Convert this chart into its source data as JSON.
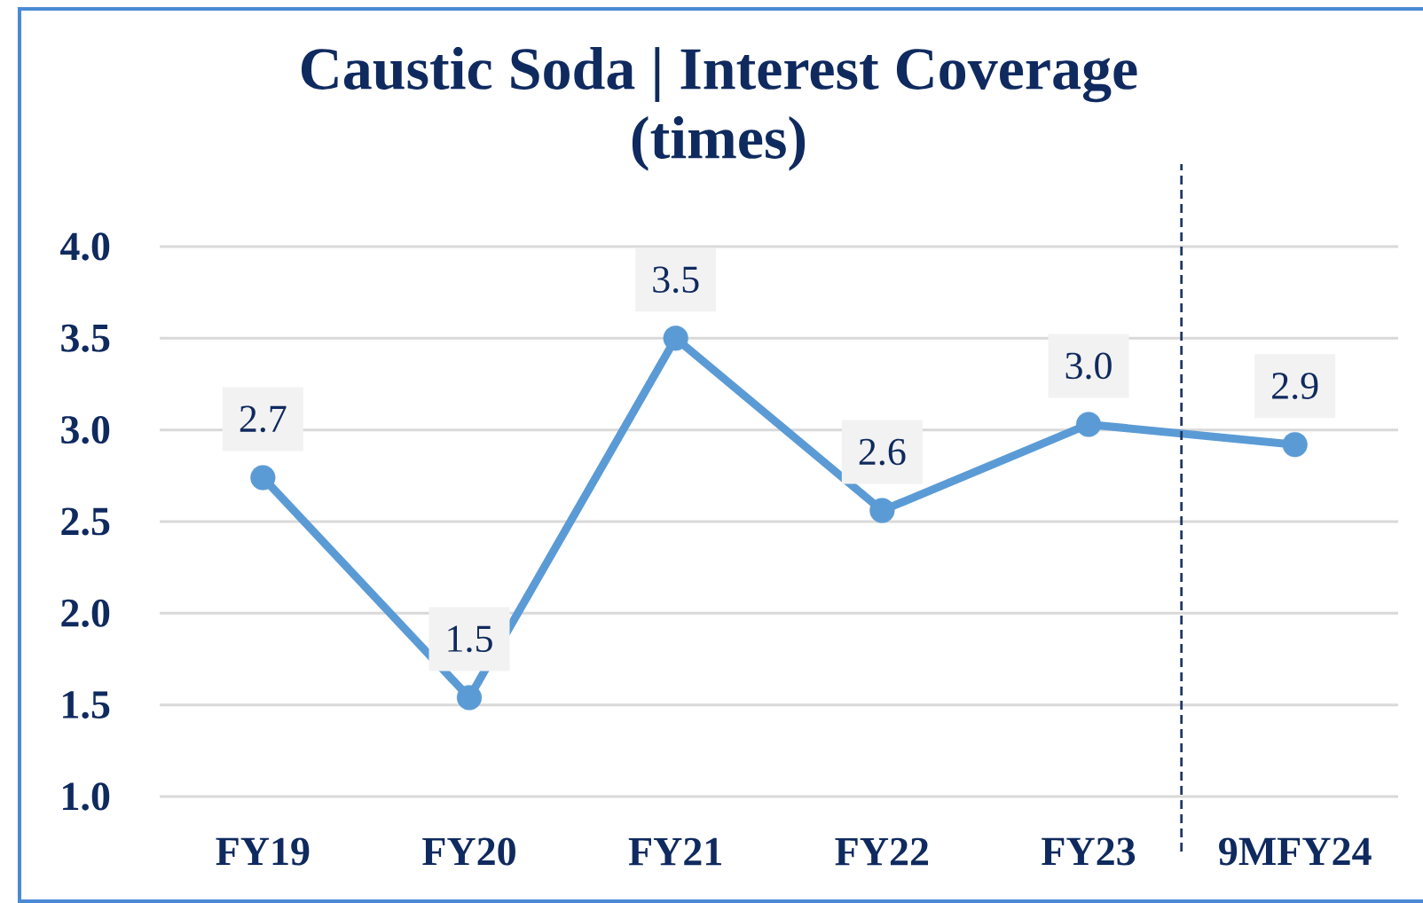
{
  "chart_data": {
    "type": "line",
    "title": "Caustic Soda | Interest Coverage (times)",
    "categories": [
      "FY19",
      "FY20",
      "FY21",
      "FY22",
      "FY23",
      "9MFY24"
    ],
    "values": [
      2.74,
      1.54,
      3.5,
      2.56,
      3.03,
      2.92
    ],
    "value_labels": [
      "2.7",
      "1.5",
      "3.5",
      "2.6",
      "3.0",
      "2.9"
    ],
    "color": "#5b9bd5",
    "marker": "circle",
    "line_style": "solid",
    "grid": "y",
    "ylim": [
      1.0,
      4.0
    ],
    "yticks": [
      {
        "value": 1.0,
        "label": "1.0"
      },
      {
        "value": 1.5,
        "label": "1.5"
      },
      {
        "value": 2.0,
        "label": "2.0"
      },
      {
        "value": 2.5,
        "label": "2.5"
      },
      {
        "value": 3.0,
        "label": "3.0"
      },
      {
        "value": 3.5,
        "label": "3.5"
      },
      {
        "value": 4.0,
        "label": "4.0"
      }
    ]
  }
}
